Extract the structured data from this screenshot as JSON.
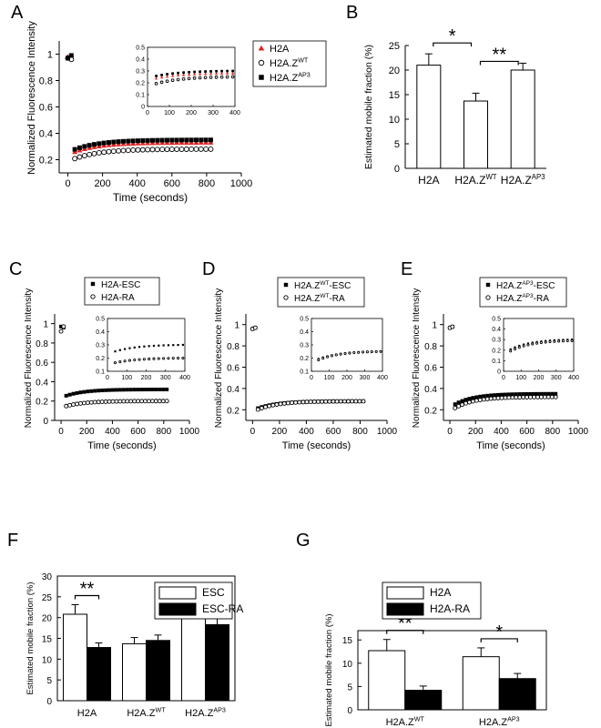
{
  "panel_letters": [
    "A",
    "B",
    "C",
    "D",
    "E",
    "F",
    "G"
  ],
  "chart_data": [
    {
      "panel": "A",
      "type": "scatter",
      "xlabel": "Time (seconds)",
      "ylabel": "Normalized Fluorescence Intensity",
      "xlim": [
        -50,
        1000
      ],
      "ylim": [
        0.1,
        1.1
      ],
      "xticks": [
        0,
        200,
        400,
        600,
        800,
        1000
      ],
      "yticks": [
        0.2,
        0.4,
        0.6,
        0.8,
        1.0
      ],
      "legend": "right-outside",
      "series": [
        {
          "name": "H2A",
          "sup": "",
          "marker": "triangle",
          "color": "#e02020",
          "pre": [
            [
              0,
              0.98
            ],
            [
              20,
              0.98
            ]
          ],
          "post_start": 0.22,
          "post_end": 0.33
        },
        {
          "name": "H2A.Z",
          "sup": "WT",
          "marker": "circle-open",
          "color": "#000000",
          "pre": [
            [
              0,
              0.97
            ],
            [
              20,
              0.96
            ]
          ],
          "post_start": 0.17,
          "post_end": 0.28
        },
        {
          "name": "H2A.Z",
          "sup": "AP3",
          "marker": "square",
          "color": "#000000",
          "pre": [
            [
              0,
              0.97
            ],
            [
              20,
              0.99
            ]
          ],
          "post_start": 0.24,
          "post_end": 0.35
        }
      ],
      "inset": {
        "xlim": [
          0,
          400
        ],
        "ylim": [
          0,
          0.5
        ],
        "xticks": [
          0,
          100,
          200,
          300,
          400
        ],
        "yticks": [
          0,
          0.1,
          0.2,
          0.3,
          0.4,
          0.5
        ],
        "series_start": [
          0.22,
          0.17,
          0.24
        ],
        "series_end": [
          0.28,
          0.25,
          0.3
        ]
      }
    },
    {
      "panel": "B",
      "type": "bar",
      "ylabel": "Estimated mobile fraction (%)",
      "ylim": [
        0,
        25
      ],
      "yticks": [
        0,
        5,
        10,
        15,
        20,
        25
      ],
      "categories": [
        {
          "name": "H2A",
          "sup": ""
        },
        {
          "name": "H2A.Z",
          "sup": "WT"
        },
        {
          "name": "H2A.Z",
          "sup": "AP3"
        }
      ],
      "values": [
        21,
        13.7,
        20
      ],
      "errors": [
        2.3,
        1.6,
        1.4
      ],
      "significance": [
        {
          "from": 0,
          "to": 1,
          "label": "*"
        },
        {
          "from": 1,
          "to": 2,
          "label": "**"
        }
      ]
    },
    {
      "panel": "C",
      "type": "scatter",
      "xlabel": "Time (seconds)",
      "ylabel": "Normalized Fluorescence Intensity",
      "xlim": [
        -50,
        1000
      ],
      "ylim": [
        0,
        1.1
      ],
      "xticks": [
        0,
        200,
        400,
        600,
        800,
        1000
      ],
      "yticks": [
        0,
        0.2,
        0.4,
        0.6,
        0.8,
        1.0
      ],
      "legend": "top",
      "series": [
        {
          "name": "H2A-ESC",
          "sup": "",
          "marker": "square",
          "color": "#000000",
          "pre": [
            [
              0,
              0.97
            ],
            [
              20,
              0.96
            ]
          ],
          "post_start": 0.22,
          "post_end": 0.32
        },
        {
          "name": "H2A-RA",
          "sup": "",
          "marker": "circle-open",
          "color": "#000000",
          "pre": [
            [
              0,
              0.92
            ],
            [
              20,
              0.97
            ]
          ],
          "post_start": 0.12,
          "post_end": 0.2
        }
      ],
      "inset": {
        "xlim": [
          0,
          400
        ],
        "ylim": [
          0.1,
          0.5
        ],
        "xticks": [
          0,
          100,
          200,
          300,
          400
        ],
        "yticks": [
          0.1,
          0.2,
          0.3,
          0.4,
          0.5
        ],
        "series_start": [
          0.23,
          0.15
        ],
        "series_end": [
          0.3,
          0.2
        ]
      }
    },
    {
      "panel": "D",
      "type": "scatter",
      "xlabel": "Time (seconds)",
      "ylabel": "Normalized Fluorescence Intensity",
      "xlim": [
        -50,
        1000
      ],
      "ylim": [
        0.1,
        1.1
      ],
      "xticks": [
        0,
        200,
        400,
        600,
        800,
        1000
      ],
      "yticks": [
        0.2,
        0.4,
        0.6,
        0.8,
        1.0
      ],
      "legend": "top",
      "series": [
        {
          "name": "H2A.Z",
          "suffix": "-ESC",
          "sup": "WT",
          "marker": "square",
          "color": "#000000",
          "pre": [
            [
              0,
              0.96
            ],
            [
              20,
              0.97
            ]
          ],
          "post_start": 0.18,
          "post_end": 0.28
        },
        {
          "name": "H2A.Z",
          "suffix": "-RA",
          "sup": "WT",
          "marker": "circle-open",
          "color": "#000000",
          "pre": [
            [
              0,
              0.96
            ],
            [
              20,
              0.97
            ]
          ],
          "post_start": 0.16,
          "post_end": 0.28
        }
      ],
      "inset": {
        "xlim": [
          0,
          400
        ],
        "ylim": [
          0.1,
          0.5
        ],
        "xticks": [
          0,
          100,
          200,
          300,
          400
        ],
        "yticks": [
          0.1,
          0.2,
          0.3,
          0.4,
          0.5
        ],
        "series_start": [
          0.17,
          0.16
        ],
        "series_end": [
          0.25,
          0.25
        ]
      }
    },
    {
      "panel": "E",
      "type": "scatter",
      "xlabel": "Time (seconds)",
      "ylabel": "Normalized Fluorescence Intensity",
      "xlim": [
        -50,
        1000
      ],
      "ylim": [
        0.1,
        1.1
      ],
      "xticks": [
        0,
        200,
        400,
        600,
        800,
        1000
      ],
      "yticks": [
        0.2,
        0.4,
        0.6,
        0.8,
        1.0
      ],
      "legend": "top",
      "series": [
        {
          "name": "H2A.Z",
          "suffix": "-ESC",
          "sup": "AP3",
          "marker": "square",
          "color": "#000000",
          "pre": [
            [
              0,
              0.97
            ],
            [
              20,
              0.98
            ]
          ],
          "post_start": 0.2,
          "post_end": 0.35
        },
        {
          "name": "H2A.Z",
          "suffix": "-RA",
          "sup": "AP3",
          "marker": "circle-open",
          "color": "#000000",
          "pre": [
            [
              0,
              0.97
            ],
            [
              20,
              0.98
            ]
          ],
          "post_start": 0.16,
          "post_end": 0.32
        }
      ],
      "inset": {
        "xlim": [
          0,
          400
        ],
        "ylim": [
          0,
          0.5
        ],
        "xticks": [
          0,
          100,
          200,
          300,
          400
        ],
        "yticks": [
          0,
          0.1,
          0.2,
          0.3,
          0.4,
          0.5
        ],
        "series_start": [
          0.17,
          0.15
        ],
        "series_end": [
          0.3,
          0.29
        ]
      }
    },
    {
      "panel": "F",
      "type": "bar",
      "ylabel": "Estimated mobile fraction (%)",
      "ylim": [
        0,
        30
      ],
      "yticks": [
        0,
        5,
        10,
        15,
        20,
        25,
        30
      ],
      "legend": "top-right",
      "categories": [
        {
          "name": "H2A",
          "sup": ""
        },
        {
          "name": "H2A.Z",
          "sup": "WT"
        },
        {
          "name": "H2A.Z",
          "sup": "AP3"
        }
      ],
      "series": [
        {
          "name": "ESC",
          "color": "#ffffff",
          "values": [
            20.8,
            13.7,
            20
          ],
          "errors": [
            2.3,
            1.5,
            1.4
          ]
        },
        {
          "name": "ESC-RA",
          "color": "#000000",
          "values": [
            12.8,
            14.5,
            18.3
          ],
          "errors": [
            1.1,
            1.3,
            2.5
          ]
        }
      ],
      "significance": [
        {
          "category": 0,
          "label": "**"
        }
      ]
    },
    {
      "panel": "G",
      "type": "bar",
      "ylabel": "Estimated mobile fraction (%)",
      "ylim": [
        0,
        17
      ],
      "yticks": [
        0,
        5,
        10,
        15
      ],
      "legend": "top-outside",
      "categories": [
        {
          "name": "H2A.Z",
          "sup": "WT"
        },
        {
          "name": "H2A.Z",
          "sup": "AP3"
        }
      ],
      "series": [
        {
          "name": "H2A",
          "color": "#ffffff",
          "values": [
            12.7,
            11.4
          ],
          "errors": [
            2.4,
            1.9
          ]
        },
        {
          "name": "H2A-RA",
          "color": "#000000",
          "values": [
            4.2,
            6.7
          ],
          "errors": [
            0.9,
            1.1
          ]
        }
      ],
      "significance": [
        {
          "category": 0,
          "label": "**"
        },
        {
          "category": 1,
          "label": "*"
        }
      ]
    }
  ]
}
